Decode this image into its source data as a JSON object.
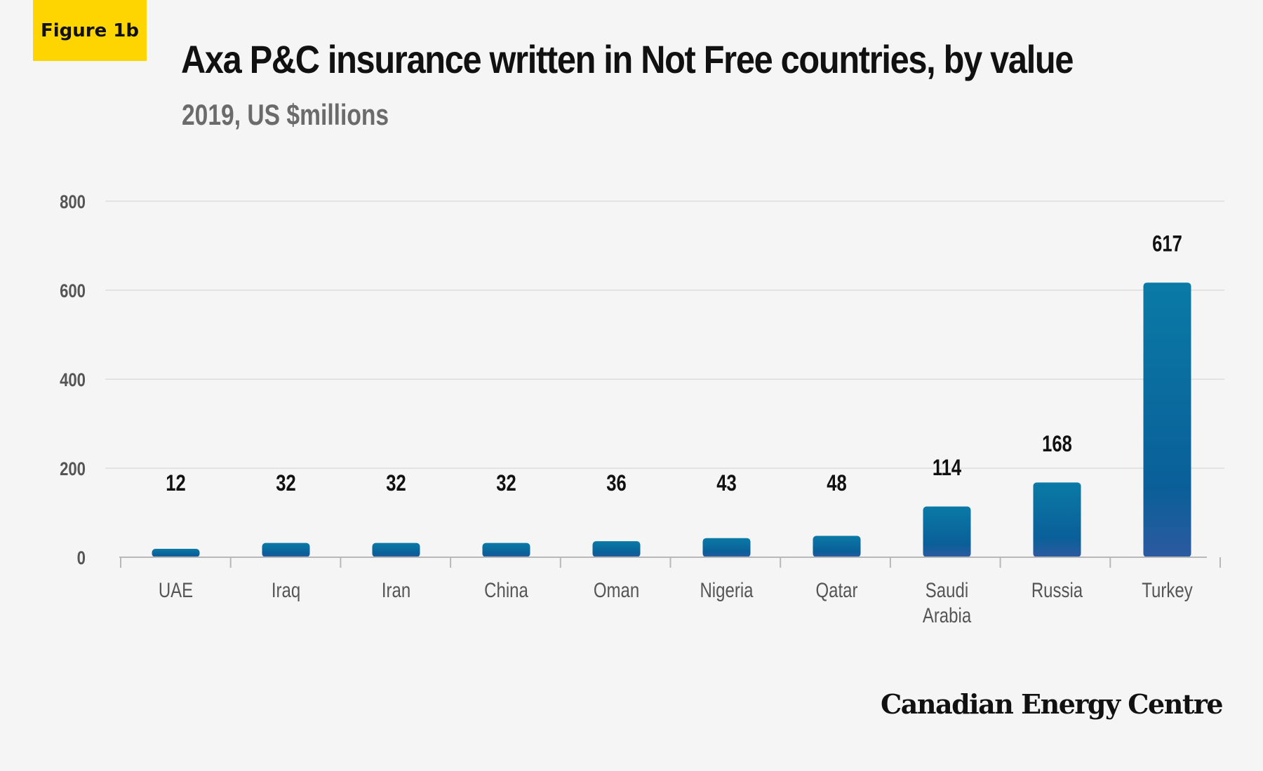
{
  "figure_label": "Figure 1b",
  "brand": "Canadian Energy Centre",
  "colors": {
    "background": "#f5f5f5",
    "badge": "#ffd500",
    "bar_top": "#0a7aa6",
    "bar_mid": "#0a5f99",
    "bar_bottom": "#2c5aa0",
    "grid": "#dddddd",
    "axis": "#b8b8b8",
    "axis_text": "#555555",
    "value_text": "#111111"
  },
  "chart_data": {
    "type": "bar",
    "title": "Axa P&C insurance written in Not Free countries, by value",
    "subtitle": "2019, US $millions",
    "xlabel": "",
    "ylabel": "",
    "categories": [
      "UAE",
      "Iraq",
      "Iran",
      "China",
      "Oman",
      "Nigeria",
      "Qatar",
      "Saudi Arabia",
      "Russia",
      "Turkey"
    ],
    "category_lines": [
      [
        "UAE"
      ],
      [
        "Iraq"
      ],
      [
        "Iran"
      ],
      [
        "China"
      ],
      [
        "Oman"
      ],
      [
        "Nigeria"
      ],
      [
        "Qatar"
      ],
      [
        "Saudi",
        "Arabia"
      ],
      [
        "Russia"
      ],
      [
        "Turkey"
      ]
    ],
    "values": [
      12,
      32,
      32,
      32,
      36,
      43,
      48,
      114,
      168,
      617
    ],
    "ylim": [
      0,
      800
    ],
    "yticks": [
      0,
      200,
      400,
      600,
      800
    ],
    "grid": true,
    "legend": "none"
  }
}
